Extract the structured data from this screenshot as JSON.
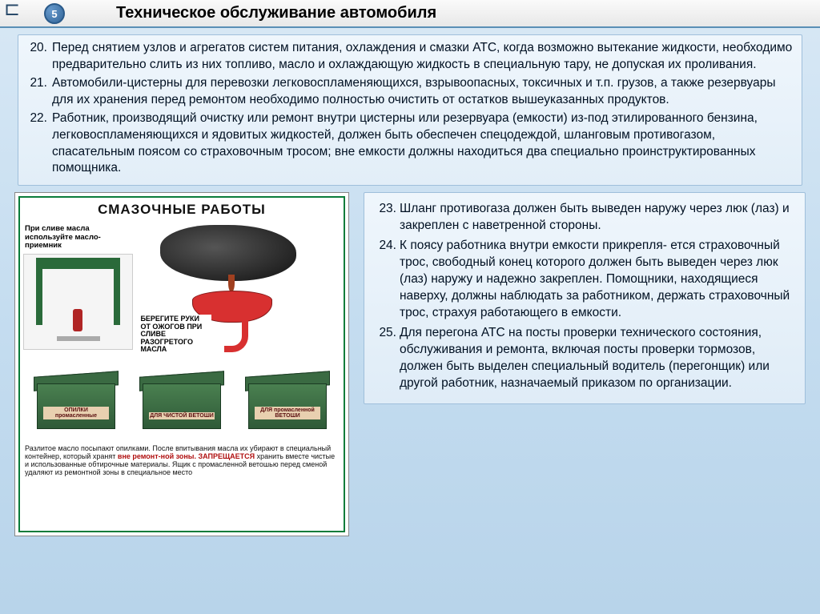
{
  "header": {
    "badge_number": "5",
    "title": "Техническое обслуживание автомобиля"
  },
  "top_items": [
    {
      "n": "20.",
      "text": "Перед снятием узлов и агрегатов систем питания, охлаждения и смазки АТС, когда возможно вытекание жидкости, необходимо предварительно слить из них топливо, масло и охлаждающую жидкость в специальную тару, не допуская их проливания."
    },
    {
      "n": "21.",
      "text": "Автомобили-цистерны для перевозки легковоспламеняющихся, взрывоопасных, токсичных и т.п. грузов, а также резервуары для их хранения перед ремонтом необходимо полностью очистить от    остатков вышеуказанных продуктов."
    },
    {
      "n": "22.",
      "text": "Работник, производящий очистку или ремонт внутри цистерны или резервуара (емкости) из-под этилированного бензина, легковоспламеняющихся и ядовитых жидкостей, должен быть обеспечен спецодеждой, шланговым противогазом, спасательным поясом со страховочным тросом; вне емкости должны находиться два специально проинструктированных помощника."
    }
  ],
  "right_items": [
    {
      "n": "23.",
      "text": "Шланг противогаза должен быть выведен наружу через люк (лаз) и закреплен с наветренной  стороны."
    },
    {
      "n": "24.",
      "text": "К поясу работника внутри емкости прикрепля- ется страховочный трос, свободный конец которого должен быть выведен через люк (лаз) наружу и    надежно закреплен. Помощники, находящиеся наверху, должны наблюдать за работником, держать страховочный трос, страхуя работающего в емкости."
    },
    {
      "n": "25.",
      "text": "Для перегона АТС на посты проверки технического состояния, обслуживания и ремонта,   включая посты  проверки тормозов, должен быть  выделен  специальный водитель (перегонщик) или другой работник, назначаемый приказом по  организации."
    }
  ],
  "poster": {
    "title": "СМАЗОЧНЫЕ РАБОТЫ",
    "caption1": "При сливе масла используйте масло-приемник",
    "caption2": "БЕРЕГИТЕ РУКИ ОТ ОЖОГОВ ПРИ СЛИВЕ РАЗОГРЕТОГО МАСЛА",
    "box_labels": [
      "ОПИЛКИ промасленные",
      "ДЛЯ ЧИСТОЙ ВЕТОШИ",
      "ДЛЯ промасленной ВЕТОШИ"
    ],
    "footer_plain1": "Разлитое масло посыпают опилками. После впитывания масла их убирают в специальный контейнер, который хранят ",
    "footer_red1": "вне ремонт-ной зоны. ЗАПРЕЩАЕТСЯ",
    "footer_plain2": " хранить вместе чистые и использованные обтирочные материалы. Ящик с промасленной ветошью перед сменой удаляют из ремонтной зоны в специальное место"
  },
  "colors": {
    "page_bg_top": "#d8e8f5",
    "page_bg_bot": "#b8d4ea",
    "panel_border": "#9fbfdb",
    "poster_border": "#0a7c3a",
    "red": "#b01010",
    "box_green": "#2f5a38"
  }
}
